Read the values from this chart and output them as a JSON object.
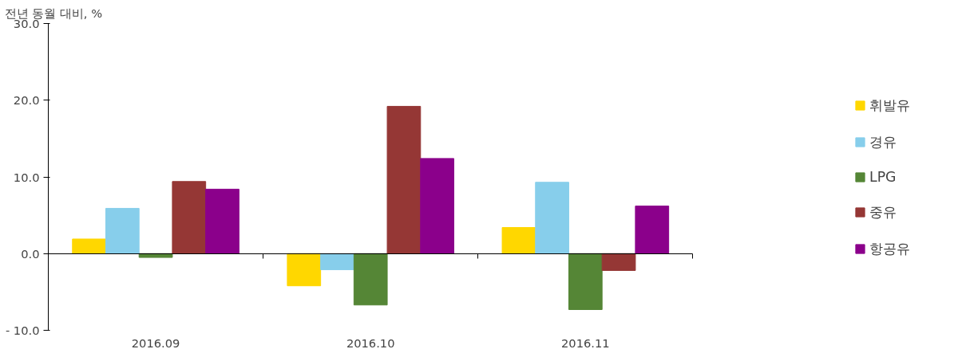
{
  "chart_data": {
    "type": "bar",
    "ylabel": "전년 동월 대비, %",
    "categories": [
      "2016.09",
      "2016.10",
      "2016.11"
    ],
    "series": [
      {
        "name": "휘발유",
        "color": "#ffd700",
        "values": [
          1.9,
          -4.2,
          3.4
        ]
      },
      {
        "name": "경유",
        "color": "#87ceeb",
        "values": [
          5.9,
          -2.1,
          9.3
        ]
      },
      {
        "name": "LPG",
        "color": "#558636",
        "values": [
          -0.5,
          -6.7,
          -7.3
        ]
      },
      {
        "name": "중유",
        "color": "#953735",
        "values": [
          9.4,
          19.2,
          -2.2
        ]
      },
      {
        "name": "항공유",
        "color": "#8b008b",
        "values": [
          8.4,
          12.4,
          6.2
        ]
      }
    ],
    "ylim": [
      -10,
      30
    ],
    "yticks": [
      {
        "value": -10,
        "label": "- 10.0"
      },
      {
        "value": 0,
        "label": "0.0"
      },
      {
        "value": 10,
        "label": "10.0"
      },
      {
        "value": 20,
        "label": "20.0"
      },
      {
        "value": 30,
        "label": "30.0"
      }
    ],
    "legend": "right"
  }
}
